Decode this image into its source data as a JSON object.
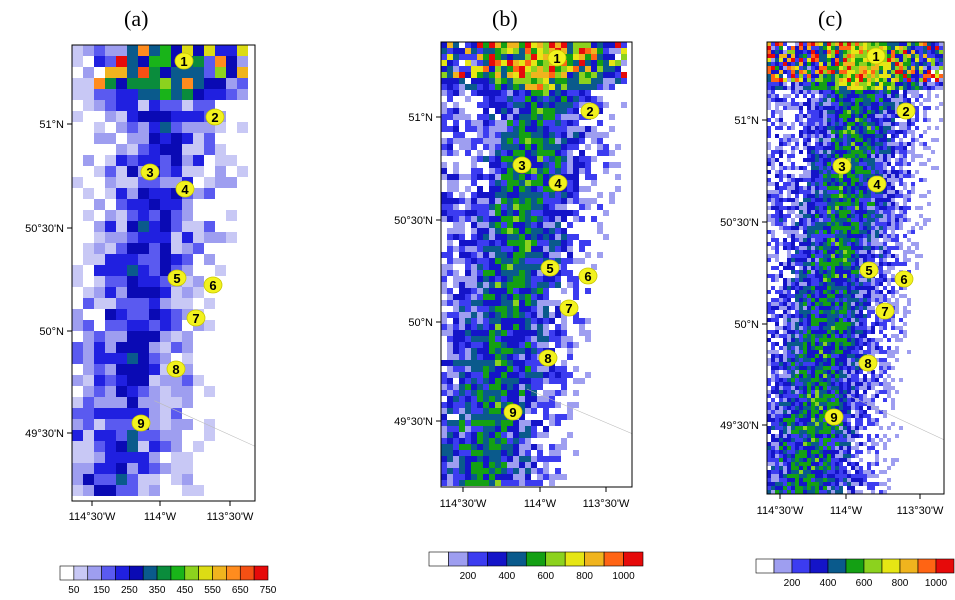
{
  "panels": [
    {
      "label": "(a)",
      "lat_ticks": [
        "51°N",
        "50°30'N",
        "50°N",
        "49°30'N"
      ],
      "lon_ticks": [
        "114°30'W",
        "114°W",
        "113°30'W"
      ],
      "colorbar_labels": [
        "50",
        "150",
        "250",
        "350",
        "450",
        "550",
        "650",
        "750"
      ],
      "colorbar_colors": [
        "#ffffff",
        "#c8c8f5",
        "#9e9ef0",
        "#5a5af0",
        "#2020e0",
        "#0a0ab4",
        "#0a5a8c",
        "#0a8c3c",
        "#19b419",
        "#8cd21e",
        "#dcdc14",
        "#f0b41e",
        "#ff8c1e",
        "#f55014",
        "#e60a0a"
      ]
    },
    {
      "label": "(b)",
      "lat_ticks": [
        "51°N",
        "50°30'N",
        "50°N",
        "49°30'N"
      ],
      "lon_ticks": [
        "114°30'W",
        "114°W",
        "113°30'W"
      ],
      "colorbar_labels": [
        "200",
        "400",
        "600",
        "800",
        "1000"
      ],
      "colorbar_colors": [
        "#ffffff",
        "#9e9ef0",
        "#3c3cf0",
        "#1414c8",
        "#0a5a8c",
        "#14a014",
        "#8cd21e",
        "#e6e614",
        "#f0b41e",
        "#ff6414",
        "#e60a0a"
      ]
    },
    {
      "label": "(c)",
      "lat_ticks": [
        "51°N",
        "50°30'N",
        "50°N",
        "49°30'N"
      ],
      "lon_ticks": [
        "114°30'W",
        "114°W",
        "113°30'W"
      ],
      "colorbar_labels": [
        "200",
        "400",
        "600",
        "800",
        "1000"
      ],
      "colorbar_colors": [
        "#ffffff",
        "#9e9ef0",
        "#3c3cf0",
        "#1414c8",
        "#0a5a8c",
        "#14a014",
        "#8cd21e",
        "#e6e614",
        "#f0b41e",
        "#ff6414",
        "#e60a0a"
      ]
    }
  ],
  "sites": [
    "1",
    "2",
    "3",
    "4",
    "5",
    "6",
    "7",
    "8",
    "9"
  ]
}
